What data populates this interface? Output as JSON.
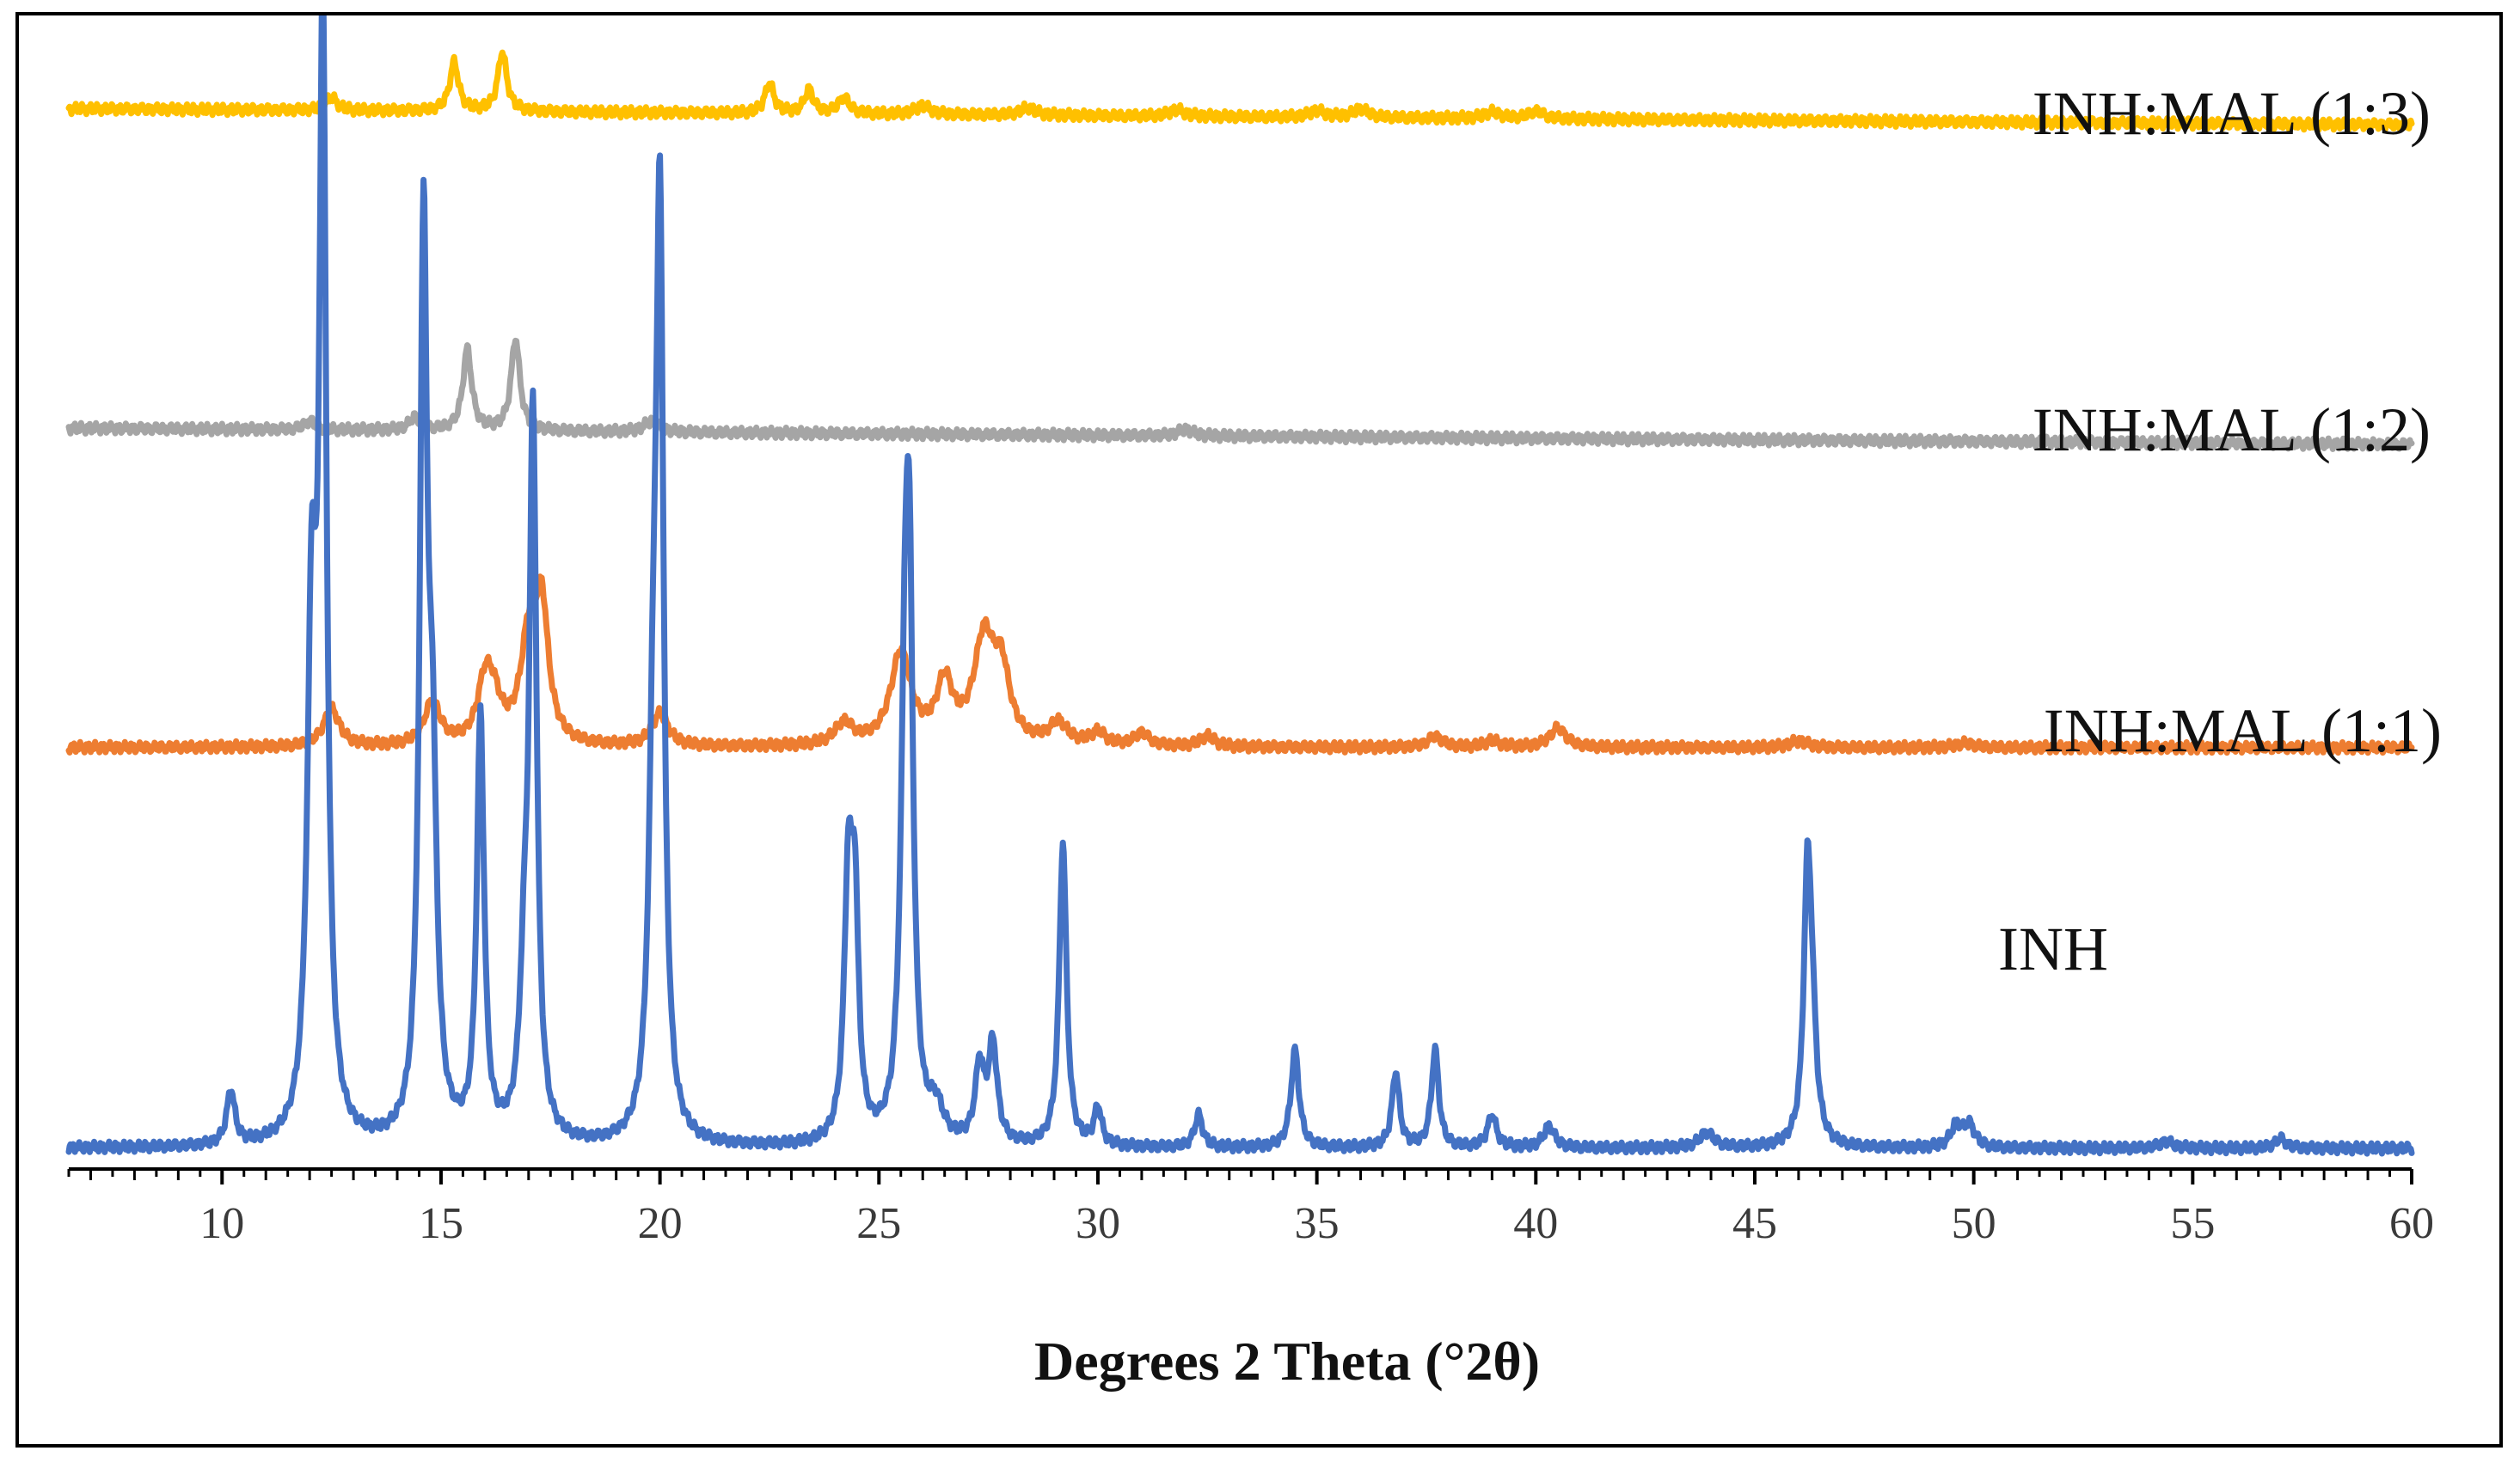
{
  "chart_data": {
    "type": "line",
    "title": "",
    "xlabel": "Degrees 2 Theta (°2θ)",
    "ylabel": "",
    "xlim": [
      6.5,
      60
    ],
    "x_ticks": [
      10,
      15,
      20,
      25,
      30,
      35,
      40,
      45,
      50,
      55,
      60
    ],
    "x_minor_step": 0.5,
    "grid": false,
    "legend": "inline labels at right",
    "series": [
      {
        "name": "INH:MAL (1:3)",
        "color": "#FFC000",
        "baseline": 0.96,
        "drift": 0.015,
        "peaks": [
          [
            12.5,
            0.012,
            0.15
          ],
          [
            15.3,
            0.045,
            0.12
          ],
          [
            16.4,
            0.055,
            0.12
          ],
          [
            22.5,
            0.028,
            0.12
          ],
          [
            23.4,
            0.022,
            0.12
          ],
          [
            24.2,
            0.015,
            0.15
          ],
          [
            26.0,
            0.008,
            0.2
          ],
          [
            28.4,
            0.007,
            0.2
          ],
          [
            31.8,
            0.006,
            0.2
          ],
          [
            35.0,
            0.006,
            0.2
          ],
          [
            36.0,
            0.008,
            0.2
          ],
          [
            39.0,
            0.006,
            0.2
          ],
          [
            40.0,
            0.007,
            0.2
          ]
        ]
      },
      {
        "name": "INH:MAL (1:2)",
        "color": "#A5A5A5",
        "baseline": 0.665,
        "drift": 0.015,
        "peaks": [
          [
            12.0,
            0.008,
            0.15
          ],
          [
            14.4,
            0.012,
            0.15
          ],
          [
            15.6,
            0.075,
            0.12
          ],
          [
            16.7,
            0.085,
            0.12
          ],
          [
            19.8,
            0.01,
            0.2
          ],
          [
            32.0,
            0.006,
            0.2
          ]
        ]
      },
      {
        "name": "INH:MAL (1:1)",
        "color": "#ED7D31",
        "baseline": 0.37,
        "drift": 0.0,
        "peaks": [
          [
            12.5,
            0.035,
            0.22
          ],
          [
            14.8,
            0.04,
            0.22
          ],
          [
            16.0,
            0.05,
            0.2
          ],
          [
            16.2,
            0.035,
            0.22
          ],
          [
            17.0,
            0.09,
            0.22
          ],
          [
            17.3,
            0.12,
            0.18
          ],
          [
            20.0,
            0.03,
            0.22
          ],
          [
            24.2,
            0.02,
            0.25
          ],
          [
            25.5,
            0.085,
            0.28
          ],
          [
            26.5,
            0.055,
            0.22
          ],
          [
            27.4,
            0.095,
            0.28
          ],
          [
            27.8,
            0.06,
            0.22
          ],
          [
            29.1,
            0.02,
            0.25
          ],
          [
            30.0,
            0.012,
            0.2
          ],
          [
            31.0,
            0.012,
            0.2
          ],
          [
            32.5,
            0.01,
            0.2
          ],
          [
            37.7,
            0.01,
            0.2
          ],
          [
            39.0,
            0.006,
            0.2
          ],
          [
            40.5,
            0.018,
            0.22
          ],
          [
            46.0,
            0.006,
            0.25
          ],
          [
            49.8,
            0.004,
            0.25
          ]
        ]
      },
      {
        "name": "INH",
        "color": "#4472C4",
        "baseline": 0.0,
        "drift": 0.0,
        "peaks": [
          [
            10.2,
            0.05,
            0.11
          ],
          [
            12.3,
            1.0,
            0.1
          ],
          [
            12.05,
            0.45,
            0.12
          ],
          [
            14.6,
            0.81,
            0.1
          ],
          [
            14.8,
            0.3,
            0.12
          ],
          [
            15.9,
            0.39,
            0.1
          ],
          [
            16.9,
            0.12,
            0.12
          ],
          [
            17.1,
            0.66,
            0.1
          ],
          [
            19.85,
            0.3,
            0.12
          ],
          [
            20.0,
            0.8,
            0.1
          ],
          [
            24.3,
            0.23,
            0.11
          ],
          [
            24.45,
            0.2,
            0.1
          ],
          [
            25.6,
            0.38,
            0.12
          ],
          [
            25.7,
            0.38,
            0.1
          ],
          [
            26.3,
            0.03,
            0.2
          ],
          [
            27.3,
            0.07,
            0.12
          ],
          [
            27.6,
            0.09,
            0.12
          ],
          [
            29.2,
            0.28,
            0.1
          ],
          [
            30.0,
            0.035,
            0.1
          ],
          [
            32.3,
            0.03,
            0.11
          ],
          [
            34.5,
            0.09,
            0.11
          ],
          [
            36.8,
            0.07,
            0.1
          ],
          [
            37.7,
            0.09,
            0.1
          ],
          [
            39.0,
            0.03,
            0.12
          ],
          [
            40.3,
            0.02,
            0.15
          ],
          [
            43.9,
            0.014,
            0.2
          ],
          [
            46.2,
            0.22,
            0.1
          ],
          [
            46.3,
            0.1,
            0.12
          ],
          [
            49.6,
            0.02,
            0.15
          ],
          [
            49.9,
            0.02,
            0.15
          ],
          [
            54.4,
            0.006,
            0.2
          ],
          [
            57.0,
            0.009,
            0.15
          ]
        ]
      }
    ]
  }
}
